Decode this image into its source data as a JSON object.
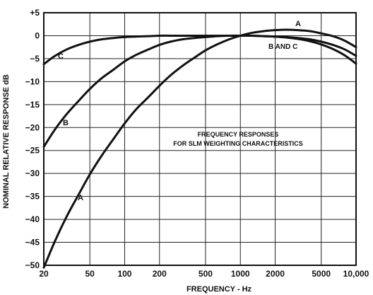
{
  "chart_data": {
    "type": "line",
    "title": "",
    "annotation": {
      "line1": "FREQUENCY RESPONSES",
      "line2": "FOR SLM WEIGHTING CHARACTERISTICS"
    },
    "xlabel": "FREQUENCY - Hz",
    "ylabel": "NOMINAL RELATIVE RESPONSE dB",
    "x_scale": "log",
    "xlim": [
      20,
      10000
    ],
    "ylim": [
      -50,
      5
    ],
    "x_ticks": [
      {
        "value": 20,
        "label": "20"
      },
      {
        "value": 50,
        "label": "50"
      },
      {
        "value": 100,
        "label": "100"
      },
      {
        "value": 200,
        "label": "200"
      },
      {
        "value": 500,
        "label": "500"
      },
      {
        "value": 1000,
        "label": "1000"
      },
      {
        "value": 2000,
        "label": "2000"
      },
      {
        "value": 5000,
        "label": "5000"
      },
      {
        "value": 10000,
        "label": "10,000"
      }
    ],
    "y_ticks": [
      {
        "value": 5,
        "label": "+5"
      },
      {
        "value": 0,
        "label": "0"
      },
      {
        "value": -5,
        "label": "-5"
      },
      {
        "value": -10,
        "label": "-10"
      },
      {
        "value": -15,
        "label": "-15"
      },
      {
        "value": -20,
        "label": "-20"
      },
      {
        "value": -25,
        "label": "-25"
      },
      {
        "value": -30,
        "label": "-30"
      },
      {
        "value": -35,
        "label": "-35"
      },
      {
        "value": -40,
        "label": "-40"
      },
      {
        "value": -45,
        "label": "-45"
      },
      {
        "value": -50,
        "label": "-50"
      }
    ],
    "grid": true,
    "series": [
      {
        "name": "A",
        "x": [
          20,
          25,
          31.5,
          40,
          50,
          63,
          80,
          100,
          125,
          160,
          200,
          250,
          315,
          400,
          500,
          630,
          800,
          1000,
          1250,
          1600,
          2000,
          2500,
          3150,
          4000,
          5000,
          6300,
          8000,
          10000
        ],
        "y": [
          -50.5,
          -44.7,
          -39.4,
          -34.6,
          -30.2,
          -26.2,
          -22.5,
          -19.1,
          -16.1,
          -13.4,
          -10.9,
          -8.6,
          -6.6,
          -4.8,
          -3.2,
          -1.9,
          -0.8,
          0,
          0.6,
          1.0,
          1.2,
          1.3,
          1.2,
          1.0,
          0.5,
          -0.1,
          -1.1,
          -2.5
        ]
      },
      {
        "name": "B",
        "x": [
          20,
          25,
          31.5,
          40,
          50,
          63,
          80,
          100,
          125,
          160,
          200,
          250,
          315,
          400,
          500,
          630,
          800,
          1000,
          1250,
          1600,
          2000,
          2500,
          3150,
          4000,
          5000,
          6300,
          8000,
          10000
        ],
        "y": [
          -24.2,
          -20.4,
          -17.1,
          -14.2,
          -11.6,
          -9.3,
          -7.4,
          -5.6,
          -4.2,
          -3.0,
          -2.0,
          -1.3,
          -0.8,
          -0.5,
          -0.3,
          -0.1,
          0,
          0,
          0,
          -0.1,
          -0.2,
          -0.4,
          -0.7,
          -1.2,
          -1.9,
          -2.9,
          -4.3,
          -6.1
        ]
      },
      {
        "name": "C",
        "x": [
          20,
          25,
          31.5,
          40,
          50,
          63,
          80,
          100,
          125,
          160,
          200,
          250,
          315,
          400,
          500,
          630,
          800,
          1000,
          1250,
          1600,
          2000,
          2500,
          3150,
          4000,
          5000,
          6300,
          8000,
          10000
        ],
        "y": [
          -6.2,
          -4.4,
          -3.0,
          -2.0,
          -1.3,
          -0.8,
          -0.5,
          -0.3,
          -0.2,
          -0.1,
          0,
          0,
          0,
          0,
          0,
          0,
          0,
          0,
          0,
          -0.1,
          -0.2,
          -0.3,
          -0.5,
          -0.8,
          -1.3,
          -2.0,
          -3.0,
          -4.4
        ]
      }
    ],
    "curve_labels": [
      {
        "text": "A",
        "series": "A"
      },
      {
        "text": "B",
        "series": "B"
      },
      {
        "text": "C",
        "series": "C"
      },
      {
        "text": "A",
        "series": "A"
      },
      {
        "text": "B AND C",
        "series": "B,C"
      }
    ]
  }
}
